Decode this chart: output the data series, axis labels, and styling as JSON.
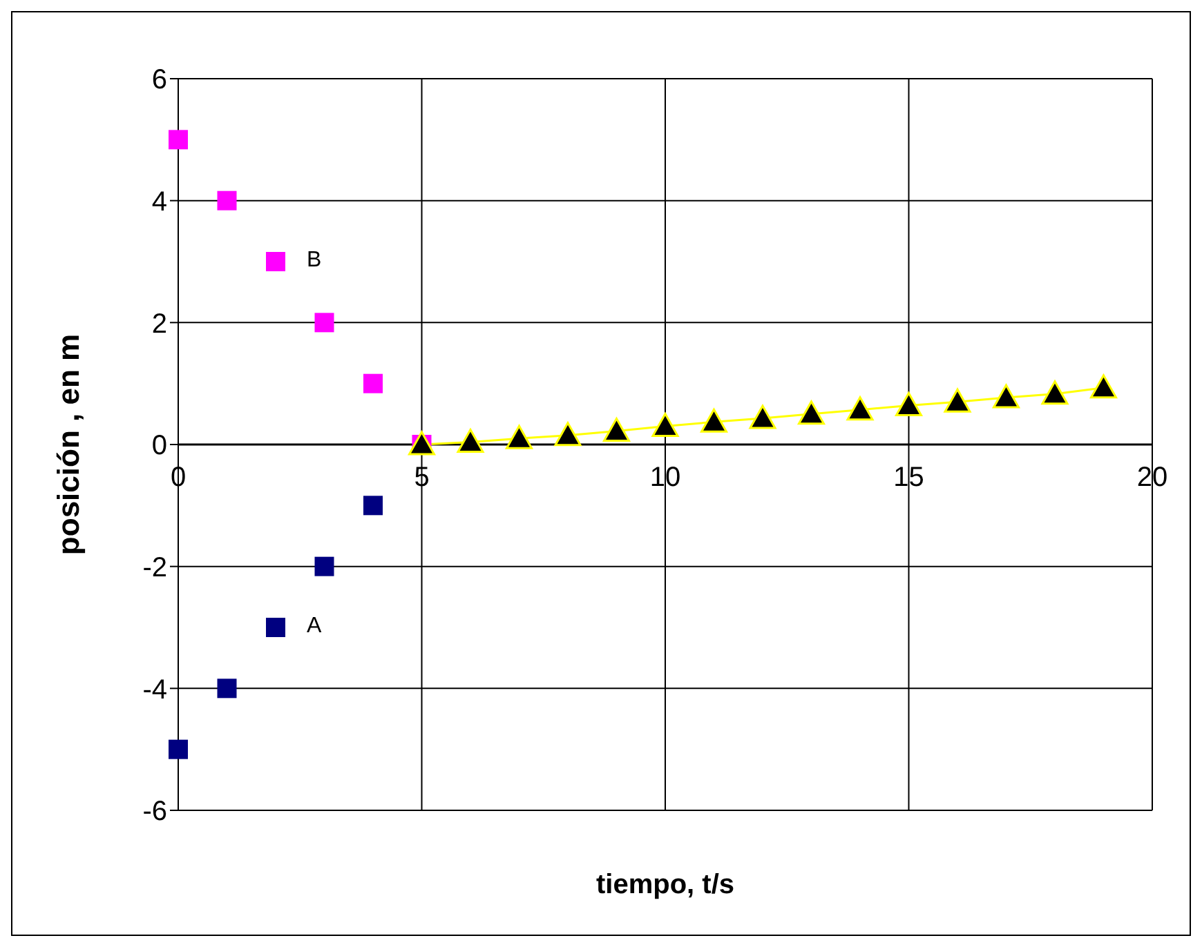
{
  "chart_data": {
    "type": "scatter",
    "xlabel": "tiempo, t/s",
    "ylabel": "posición , en m",
    "xlim": [
      0,
      20
    ],
    "xticks": [
      0,
      5,
      10,
      15,
      20
    ],
    "ylim": [
      -6,
      6
    ],
    "yticks": [
      -6,
      -4,
      -2,
      0,
      2,
      4,
      6
    ],
    "grid": true,
    "series": [
      {
        "name": "B",
        "color": "#ff00ff",
        "marker": "square",
        "x": [
          0,
          1,
          2,
          3,
          4,
          5
        ],
        "values": [
          5,
          4,
          3,
          2,
          1,
          0
        ]
      },
      {
        "name": "A",
        "color": "#000080",
        "marker": "square",
        "x": [
          0,
          1,
          2,
          3,
          4
        ],
        "values": [
          -5,
          -4,
          -3,
          -2,
          -1
        ]
      },
      {
        "type": "line",
        "color": "#ffff00",
        "marker": "triangle",
        "x": [
          5,
          6,
          7,
          8,
          9,
          10,
          11,
          12,
          13,
          14,
          15,
          16,
          17,
          18,
          19
        ],
        "values": [
          0,
          0.04,
          0.1,
          0.15,
          0.22,
          0.3,
          0.37,
          0.43,
          0.5,
          0.57,
          0.64,
          0.7,
          0.77,
          0.83,
          0.93
        ]
      }
    ]
  }
}
